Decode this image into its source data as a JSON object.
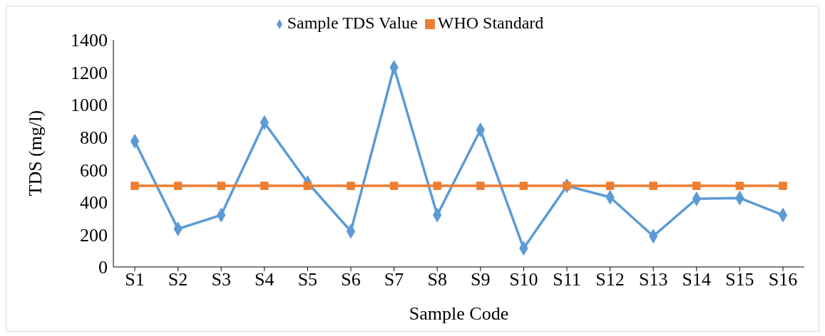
{
  "chart_data": {
    "type": "line",
    "xlabel": "Sample Code",
    "ylabel": "TDS (mg/l)",
    "categories": [
      "S1",
      "S2",
      "S3",
      "S4",
      "S5",
      "S6",
      "S7",
      "S8",
      "S9",
      "S10",
      "S11",
      "S12",
      "S13",
      "S14",
      "S15",
      "S16"
    ],
    "series": [
      {
        "name": "Sample TDS Value",
        "color": "#5b9bd5",
        "marker": "diamond",
        "values": [
          775,
          235,
          320,
          890,
          520,
          220,
          1230,
          320,
          845,
          115,
          500,
          430,
          190,
          420,
          425,
          320
        ]
      },
      {
        "name": "WHO Standard",
        "color": "#ed7d31",
        "marker": "square",
        "values": [
          500,
          500,
          500,
          500,
          500,
          500,
          500,
          500,
          500,
          500,
          500,
          500,
          500,
          500,
          500,
          500
        ]
      }
    ],
    "ylim": [
      0,
      1400
    ],
    "yticks": [
      0,
      200,
      400,
      600,
      800,
      1000,
      1200,
      1400
    ],
    "grid": false,
    "legend": "top"
  }
}
